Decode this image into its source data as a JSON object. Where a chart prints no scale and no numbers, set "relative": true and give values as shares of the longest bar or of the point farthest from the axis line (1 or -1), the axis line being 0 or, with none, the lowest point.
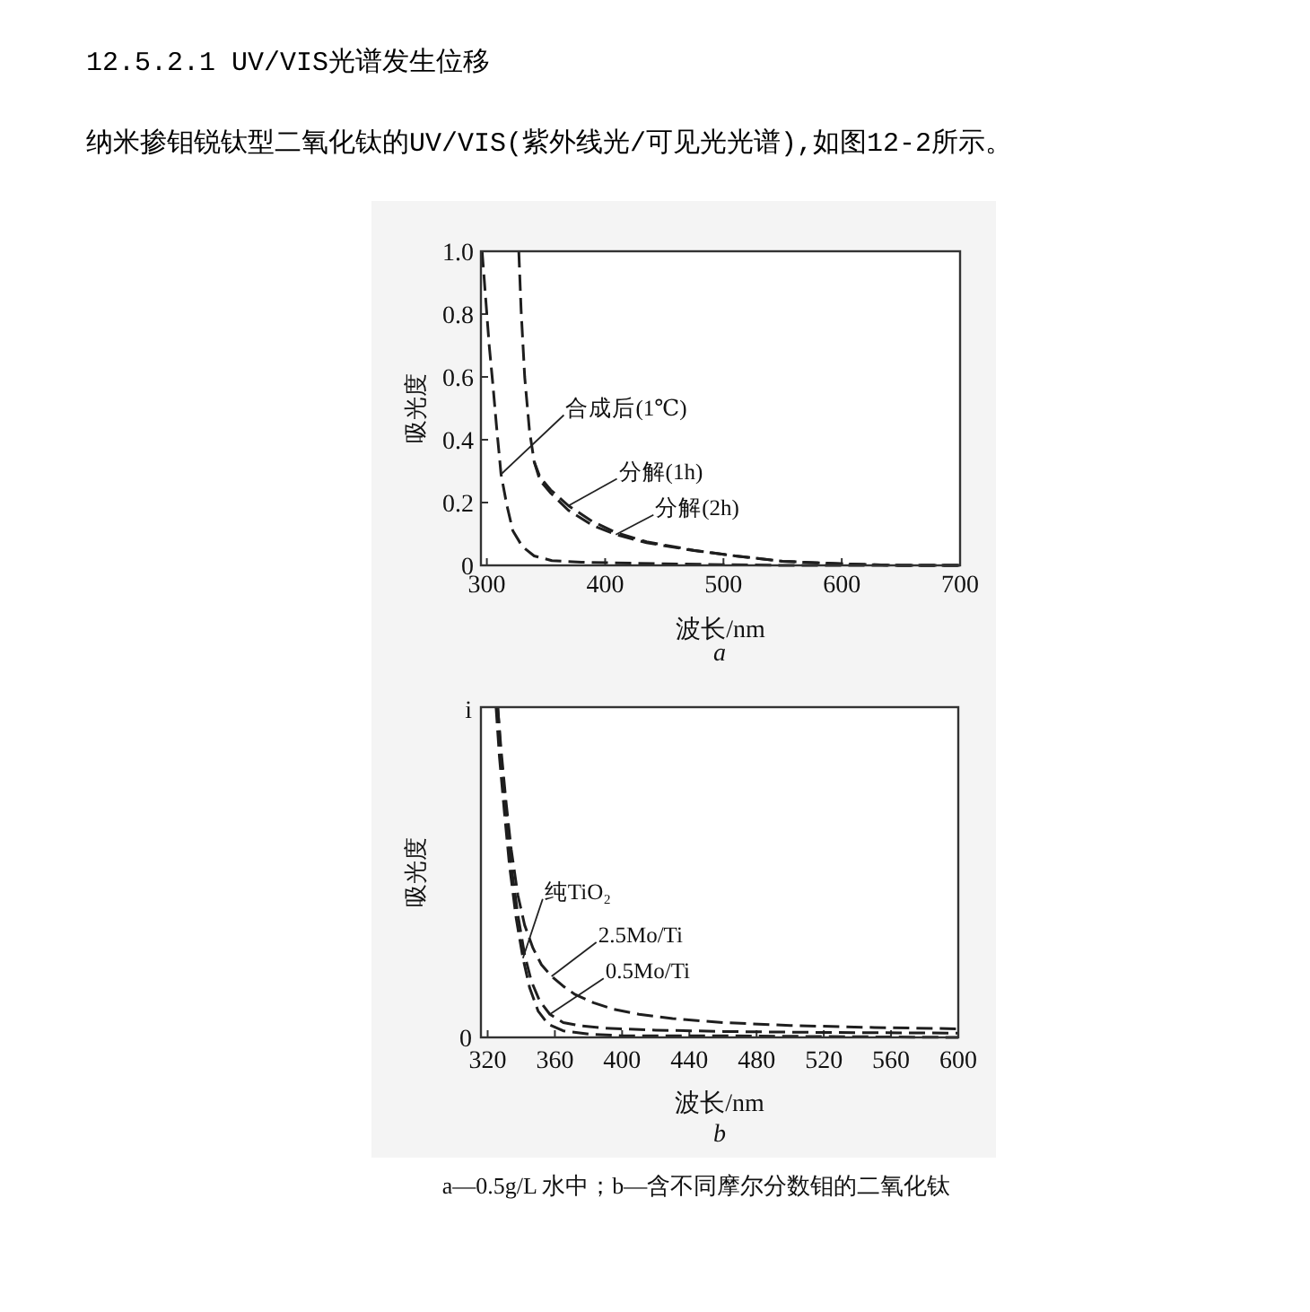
{
  "chart_data": [
    {
      "type": "line",
      "title": "12.5.2.1 UV/VIS光谱发生位移",
      "subtitle": "纳米掺钼锐钛型二氧化钛的UV/VIS(紫外线光/可见光光谱),如图12-2所示。",
      "xlabel": "波长/nm",
      "ylabel": "吸光度",
      "annotations": [
        {
          "text": "合成后(1℃)",
          "x": 312,
          "y": 0.29
        },
        {
          "text": "分解(1h)",
          "x": 369,
          "y": 0.19
        },
        {
          "text": "分解(2h)",
          "x": 409,
          "y": 0.098
        },
        "a"
      ],
      "xlim": [
        295,
        700
      ],
      "ylim": [
        0,
        1
      ],
      "xticks": [
        300,
        400,
        500,
        600,
        700
      ],
      "yticks": [
        0,
        0.2,
        0.4,
        0.6,
        0.8,
        {
          "value": 1,
          "label": "1.0"
        }
      ],
      "line_style": "dashed",
      "series": [
        {
          "color": "#1e1e1e",
          "x": [
            296,
            299,
            302,
            305,
            308,
            312,
            317,
            322,
            330,
            340,
            355,
            380,
            450,
            550,
            700
          ],
          "values": [
            1.0,
            0.85,
            0.7,
            0.58,
            0.45,
            0.29,
            0.19,
            0.11,
            0.06,
            0.03,
            0.015,
            0.01,
            0.005,
            0,
            0
          ]
        },
        {
          "color": "#1e1e1e",
          "x": [
            327,
            329,
            332,
            336,
            340,
            345,
            354,
            369,
            389,
            409,
            435,
            475,
            510,
            550,
            600,
            650,
            700
          ],
          "values": [
            1.0,
            0.81,
            0.6,
            0.43,
            0.33,
            0.28,
            0.24,
            0.19,
            0.14,
            0.105,
            0.075,
            0.048,
            0.03,
            0.013,
            0.005,
            0,
            0
          ]
        },
        {
          "color": "#1e1e1e",
          "x": [
            340,
            345,
            354,
            369,
            389,
            409,
            435,
            475,
            510,
            550,
            600,
            650,
            700
          ],
          "values": [
            0.33,
            0.27,
            0.23,
            0.175,
            0.128,
            0.098,
            0.072,
            0.047,
            0.03,
            0.013,
            0.005,
            0,
            0
          ]
        }
      ]
    },
    {
      "type": "line",
      "xlabel": "波长/nm",
      "ylabel": "吸光度",
      "relative": true,
      "annotations": [
        {
          "text": "纯TiO₂",
          "x": 341,
          "y": 0.24
        },
        {
          "text": "2.5Mo/Ti",
          "x": 358,
          "y": 0.185
        },
        {
          "text": "0.5Mo/Ti",
          "x": 357,
          "y": 0.07
        },
        "i",
        "0",
        "b",
        "a—0.5g/L 水中；b—含不同摩尔分数钼的二氧化钛"
      ],
      "xlim": [
        316,
        600
      ],
      "xticks": [
        320,
        360,
        400,
        440,
        480,
        520,
        560,
        600
      ],
      "line_style": "dashed",
      "series": [
        {
          "color": "#1e1e1e",
          "x": [
            325,
            327,
            330,
            333,
            337,
            341,
            345,
            350,
            356,
            365,
            380,
            400,
            450,
            600
          ],
          "values": [
            1.0,
            0.85,
            0.68,
            0.52,
            0.36,
            0.24,
            0.15,
            0.08,
            0.04,
            0.02,
            0.01,
            0.005,
            0.005,
            0
          ]
        },
        {
          "color": "#1e1e1e",
          "x": [
            326,
            328,
            331,
            334,
            338,
            342,
            347,
            352,
            358,
            365,
            372,
            383,
            395,
            410,
            430,
            460,
            500,
            550,
            600
          ],
          "values": [
            1.0,
            0.87,
            0.71,
            0.57,
            0.43,
            0.34,
            0.27,
            0.22,
            0.185,
            0.155,
            0.13,
            0.105,
            0.085,
            0.07,
            0.057,
            0.045,
            0.036,
            0.03,
            0.026
          ]
        },
        {
          "color": "#1e1e1e",
          "x": [
            326,
            328,
            331,
            334,
            338,
            342,
            346,
            351,
            357,
            365,
            375,
            390,
            420,
            460,
            520,
            600
          ],
          "values": [
            1.0,
            0.85,
            0.68,
            0.52,
            0.37,
            0.25,
            0.17,
            0.11,
            0.07,
            0.045,
            0.035,
            0.028,
            0.022,
            0.018,
            0.015,
            0.013
          ]
        }
      ]
    }
  ]
}
